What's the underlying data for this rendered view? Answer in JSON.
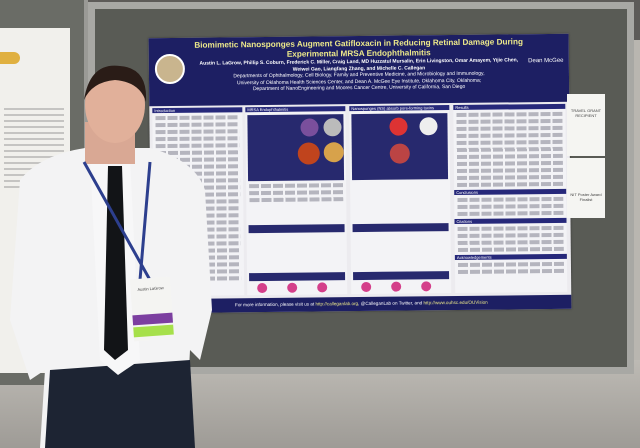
{
  "poster": {
    "title": "Biomimetic Nanosponges Augment Gatifloxacin in Reducing Retinal Damage During Experimental MRSA Endophthalmitis",
    "authors_line1": "Austin L. LaGrow, Phillip S. Coburn, Frederick C. Miller, Craig Land, MD Huzzatul Mursalin, Erin Livingston, Omar Amayem, Yijie Chen,",
    "authors_line2": "Weiwei Gao, Liangfang Zhang, and Michelle C. Callegan",
    "affil1": "Departments of Ophthalmology, Cell Biology, Family and Preventive Medicine, and Microbiology and Immunology,",
    "affil2": "University of Oklahoma Health Sciences Center, and Dean A. McGee Eye Institute, Oklahoma City, Oklahoma;",
    "affil3": "Department of NanoEngineering and Moores Cancer Centre, University of California, San Diego",
    "logo": "Dean McGee",
    "sections": [
      "Introduction",
      "MRSA Endophthalmitis",
      "Nanosponges (NS) absorb pore-forming toxins",
      "Results",
      "Conclusions",
      "Citations",
      "Acknowledgements"
    ],
    "footer_prefix": "For more information, please visit us at",
    "footer_link1": "http://calleganlab.org",
    "footer_mid": "@CalleganLab on Twitter, and",
    "footer_link2": "http://www.ouhsc.edu/OUVision"
  },
  "badges": [
    {
      "text": "TRAVEL GRANT RECIPIENT"
    },
    {
      "text": "NIT Poster Award Finalist"
    }
  ],
  "nametag": {
    "name": "Austin LaGrow"
  },
  "colors": {
    "poster_header": "#1d1f63",
    "title": "#ece88a",
    "board": "#595b55"
  }
}
